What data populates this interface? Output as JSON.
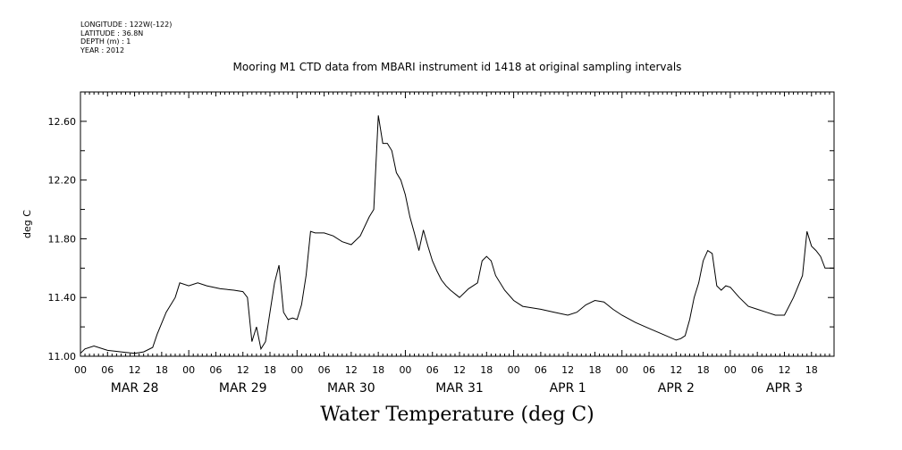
{
  "header": {
    "meta_lines": [
      "LONGITUDE : 122W(-122)",
      "LATITUDE : 36.8N",
      "DEPTH (m) : 1",
      "YEAR : 2012"
    ],
    "title": "Mooring M1 CTD data from MBARI instrument id 1418 at original sampling intervals"
  },
  "chart_data": {
    "type": "line",
    "title": "Mooring M1 CTD data from MBARI instrument id 1418 at original sampling intervals",
    "xlabel": "Water Temperature (deg C)",
    "ylabel": "deg C",
    "ylim": [
      11.0,
      12.8
    ],
    "xlim": [
      "2012-03-28 00:00",
      "2012-04-03 23:00"
    ],
    "y_ticks": [
      "11.00",
      "11.40",
      "11.80",
      "12.20",
      "12.60"
    ],
    "x_tick_labels": [
      "00",
      "06",
      "12",
      "18",
      "00",
      "06",
      "12",
      "18",
      "00",
      "06",
      "12",
      "18",
      "00",
      "06",
      "12",
      "18",
      "00",
      "06",
      "12",
      "18",
      "00",
      "06",
      "12",
      "18",
      "00",
      "06",
      "12",
      "18",
      "00"
    ],
    "day_labels": [
      "MAR 28",
      "MAR 29",
      "MAR 30",
      "MAR 31",
      "APR  1",
      "APR  2",
      "APR  3"
    ],
    "grid": false,
    "line_color": "#000000",
    "series": [
      {
        "x": [
          "2012-03-28 00:00",
          "2012-03-28 01:00",
          "2012-03-28 03:00",
          "2012-03-28 06:00",
          "2012-03-28 09:00",
          "2012-03-28 12:00",
          "2012-03-28 14:00",
          "2012-03-28 16:00",
          "2012-03-28 17:00",
          "2012-03-28 19:00",
          "2012-03-28 21:00",
          "2012-03-28 22:00",
          "2012-03-29 00:00",
          "2012-03-29 02:00",
          "2012-03-29 04:00",
          "2012-03-29 07:00",
          "2012-03-29 10:00",
          "2012-03-29 12:00",
          "2012-03-29 13:00",
          "2012-03-29 14:00",
          "2012-03-29 15:00",
          "2012-03-29 16:00",
          "2012-03-29 17:00",
          "2012-03-29 18:00",
          "2012-03-29 19:00",
          "2012-03-29 20:00",
          "2012-03-29 21:00",
          "2012-03-29 22:00",
          "2012-03-29 23:00",
          "2012-03-30 00:00",
          "2012-03-30 01:00",
          "2012-03-30 02:00",
          "2012-03-30 03:00",
          "2012-03-30 04:00",
          "2012-03-30 06:00",
          "2012-03-30 08:00",
          "2012-03-30 10:00",
          "2012-03-30 12:00",
          "2012-03-30 14:00",
          "2012-03-30 16:00",
          "2012-03-30 17:00",
          "2012-03-30 18:00",
          "2012-03-30 19:00",
          "2012-03-30 20:00",
          "2012-03-30 21:00",
          "2012-03-30 22:00",
          "2012-03-30 23:00",
          "2012-03-31 00:00",
          "2012-03-31 01:00",
          "2012-03-31 02:00",
          "2012-03-31 03:00",
          "2012-03-31 04:00",
          "2012-03-31 05:00",
          "2012-03-31 06:00",
          "2012-03-31 07:00",
          "2012-03-31 08:00",
          "2012-03-31 09:00",
          "2012-03-31 10:00",
          "2012-03-31 12:00",
          "2012-03-31 14:00",
          "2012-03-31 16:00",
          "2012-03-31 17:00",
          "2012-03-31 18:00",
          "2012-03-31 19:00",
          "2012-03-31 20:00",
          "2012-03-31 22:00",
          "2012-04-01 00:00",
          "2012-04-01 02:00",
          "2012-04-01 04:00",
          "2012-04-01 06:00",
          "2012-04-01 09:00",
          "2012-04-01 12:00",
          "2012-04-01 14:00",
          "2012-04-01 16:00",
          "2012-04-01 18:00",
          "2012-04-01 20:00",
          "2012-04-01 22:00",
          "2012-04-02 00:00",
          "2012-04-02 03:00",
          "2012-04-02 06:00",
          "2012-04-02 09:00",
          "2012-04-02 12:00",
          "2012-04-02 13:00",
          "2012-04-02 14:00",
          "2012-04-02 15:00",
          "2012-04-02 16:00",
          "2012-04-02 17:00",
          "2012-04-02 18:00",
          "2012-04-02 19:00",
          "2012-04-02 20:00",
          "2012-04-02 21:00",
          "2012-04-02 22:00",
          "2012-04-02 23:00",
          "2012-04-03 00:00",
          "2012-04-03 02:00",
          "2012-04-03 04:00",
          "2012-04-03 06:00",
          "2012-04-03 08:00",
          "2012-04-03 10:00",
          "2012-04-03 12:00",
          "2012-04-03 14:00",
          "2012-04-03 16:00",
          "2012-04-03 17:00",
          "2012-04-03 18:00",
          "2012-04-03 19:00",
          "2012-04-03 20:00",
          "2012-04-03 21:00",
          "2012-04-03 22:00",
          "2012-04-03 23:00"
        ],
        "y": [
          11.02,
          11.05,
          11.07,
          11.04,
          11.03,
          11.02,
          11.03,
          11.06,
          11.15,
          11.3,
          11.4,
          11.5,
          11.48,
          11.5,
          11.48,
          11.46,
          11.45,
          11.44,
          11.4,
          11.1,
          11.2,
          11.05,
          11.1,
          11.3,
          11.5,
          11.62,
          11.3,
          11.25,
          11.26,
          11.25,
          11.35,
          11.55,
          11.85,
          11.84,
          11.84,
          11.82,
          11.78,
          11.76,
          11.82,
          11.95,
          12.0,
          12.64,
          12.45,
          12.45,
          12.4,
          12.25,
          12.2,
          12.1,
          11.95,
          11.84,
          11.72,
          11.86,
          11.75,
          11.65,
          11.58,
          11.52,
          11.48,
          11.45,
          11.4,
          11.46,
          11.5,
          11.65,
          11.68,
          11.65,
          11.55,
          11.45,
          11.38,
          11.34,
          11.33,
          11.32,
          11.3,
          11.28,
          11.3,
          11.35,
          11.38,
          11.37,
          11.32,
          11.28,
          11.23,
          11.19,
          11.15,
          11.11,
          11.12,
          11.14,
          11.25,
          11.4,
          11.5,
          11.65,
          11.72,
          11.7,
          11.48,
          11.45,
          11.48,
          11.47,
          11.4,
          11.34,
          11.32,
          11.3,
          11.28,
          11.28,
          11.4,
          11.55,
          11.85,
          11.75,
          11.72,
          11.68,
          11.6,
          11.6,
          11.6
        ]
      }
    ]
  }
}
